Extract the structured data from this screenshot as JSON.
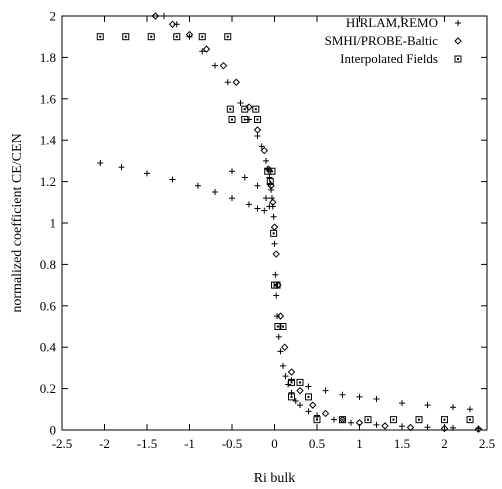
{
  "chart_data": {
    "type": "scatter",
    "xlabel": "Ri bulk",
    "ylabel": "normalized coefficient CE/CEN",
    "xlim": [
      -2.5,
      2.5
    ],
    "ylim": [
      0,
      2
    ],
    "x_ticks": [
      "-2.5",
      "-2",
      "-1.5",
      "-1",
      "-0.5",
      "0",
      "0.5",
      "1",
      "1.5",
      "2",
      "2.5"
    ],
    "y_ticks": [
      "0",
      "0.2",
      "0.4",
      "0.6",
      "0.8",
      "1",
      "1.2",
      "1.4",
      "1.6",
      "1.8",
      "2"
    ],
    "grid": false,
    "legend_position": "top-right",
    "series": [
      {
        "name": "HIRLAM,REMO",
        "marker": "plus",
        "x": [
          -1.3,
          -1.15,
          -1.0,
          -0.85,
          -0.7,
          -0.55,
          -0.4,
          -0.3,
          -0.2,
          -0.15,
          -0.1,
          -0.08,
          -0.06,
          -0.05,
          -0.04,
          -0.03,
          -0.02,
          -0.01,
          0.0,
          0.01,
          0.02,
          0.03,
          0.05,
          0.07,
          0.1,
          0.13,
          0.16,
          0.2,
          0.25,
          0.3,
          0.4,
          0.5,
          0.7,
          0.9,
          1.2,
          1.5,
          1.8,
          2.1,
          2.4,
          -2.05,
          -1.8,
          -1.5,
          -1.2,
          -0.9,
          -0.7,
          -0.5,
          -0.3,
          -0.2,
          -0.12,
          -0.06,
          -0.5,
          -0.35,
          -0.2,
          -0.1,
          0.2,
          0.4,
          0.6,
          0.8,
          1.0,
          1.2,
          1.5,
          1.8,
          2.1,
          2.3
        ],
        "y": [
          2.0,
          1.96,
          1.9,
          1.83,
          1.76,
          1.68,
          1.58,
          1.5,
          1.42,
          1.37,
          1.3,
          1.26,
          1.22,
          1.19,
          1.16,
          1.12,
          1.08,
          1.03,
          0.9,
          0.75,
          0.65,
          0.55,
          0.45,
          0.38,
          0.31,
          0.26,
          0.22,
          0.18,
          0.14,
          0.12,
          0.09,
          0.07,
          0.05,
          0.035,
          0.025,
          0.018,
          0.013,
          0.01,
          0.008,
          1.29,
          1.27,
          1.24,
          1.21,
          1.18,
          1.15,
          1.12,
          1.09,
          1.07,
          1.06,
          1.08,
          1.25,
          1.22,
          1.18,
          1.12,
          0.24,
          0.21,
          0.19,
          0.17,
          0.16,
          0.15,
          0.13,
          0.12,
          0.11,
          0.1
        ]
      },
      {
        "name": "SMHI/PROBE-Baltic",
        "marker": "diamond",
        "x": [
          -1.4,
          -1.2,
          -1.0,
          -0.8,
          -0.6,
          -0.45,
          -0.3,
          -0.2,
          -0.12,
          -0.07,
          -0.04,
          -0.02,
          0.0,
          0.02,
          0.04,
          0.07,
          0.12,
          0.2,
          0.3,
          0.45,
          0.6,
          0.8,
          1.0,
          1.3,
          1.6,
          2.0,
          2.4
        ],
        "y": [
          2.0,
          1.96,
          1.91,
          1.84,
          1.76,
          1.68,
          1.56,
          1.45,
          1.35,
          1.26,
          1.18,
          1.1,
          0.98,
          0.85,
          0.7,
          0.55,
          0.4,
          0.28,
          0.19,
          0.12,
          0.08,
          0.05,
          0.035,
          0.02,
          0.012,
          0.007,
          0.004
        ]
      },
      {
        "name": "Interpolated Fields",
        "marker": "square",
        "x": [
          -2.05,
          -1.75,
          -1.45,
          -1.15,
          -0.85,
          -0.55,
          -0.52,
          -0.35,
          -0.22,
          -0.5,
          -0.35,
          -0.2,
          -0.08,
          -0.03,
          -0.05,
          -0.01,
          0.0,
          0.03,
          0.04,
          0.1,
          0.2,
          0.3,
          0.2,
          0.4,
          0.5,
          0.8,
          1.1,
          1.4,
          1.7,
          2.0,
          2.3
        ],
        "y": [
          1.9,
          1.9,
          1.9,
          1.9,
          1.9,
          1.9,
          1.55,
          1.55,
          1.55,
          1.5,
          1.5,
          1.5,
          1.25,
          1.25,
          1.2,
          0.95,
          0.7,
          0.7,
          0.5,
          0.5,
          0.23,
          0.23,
          0.16,
          0.16,
          0.05,
          0.05,
          0.05,
          0.05,
          0.05,
          0.05,
          0.05
        ]
      }
    ]
  }
}
